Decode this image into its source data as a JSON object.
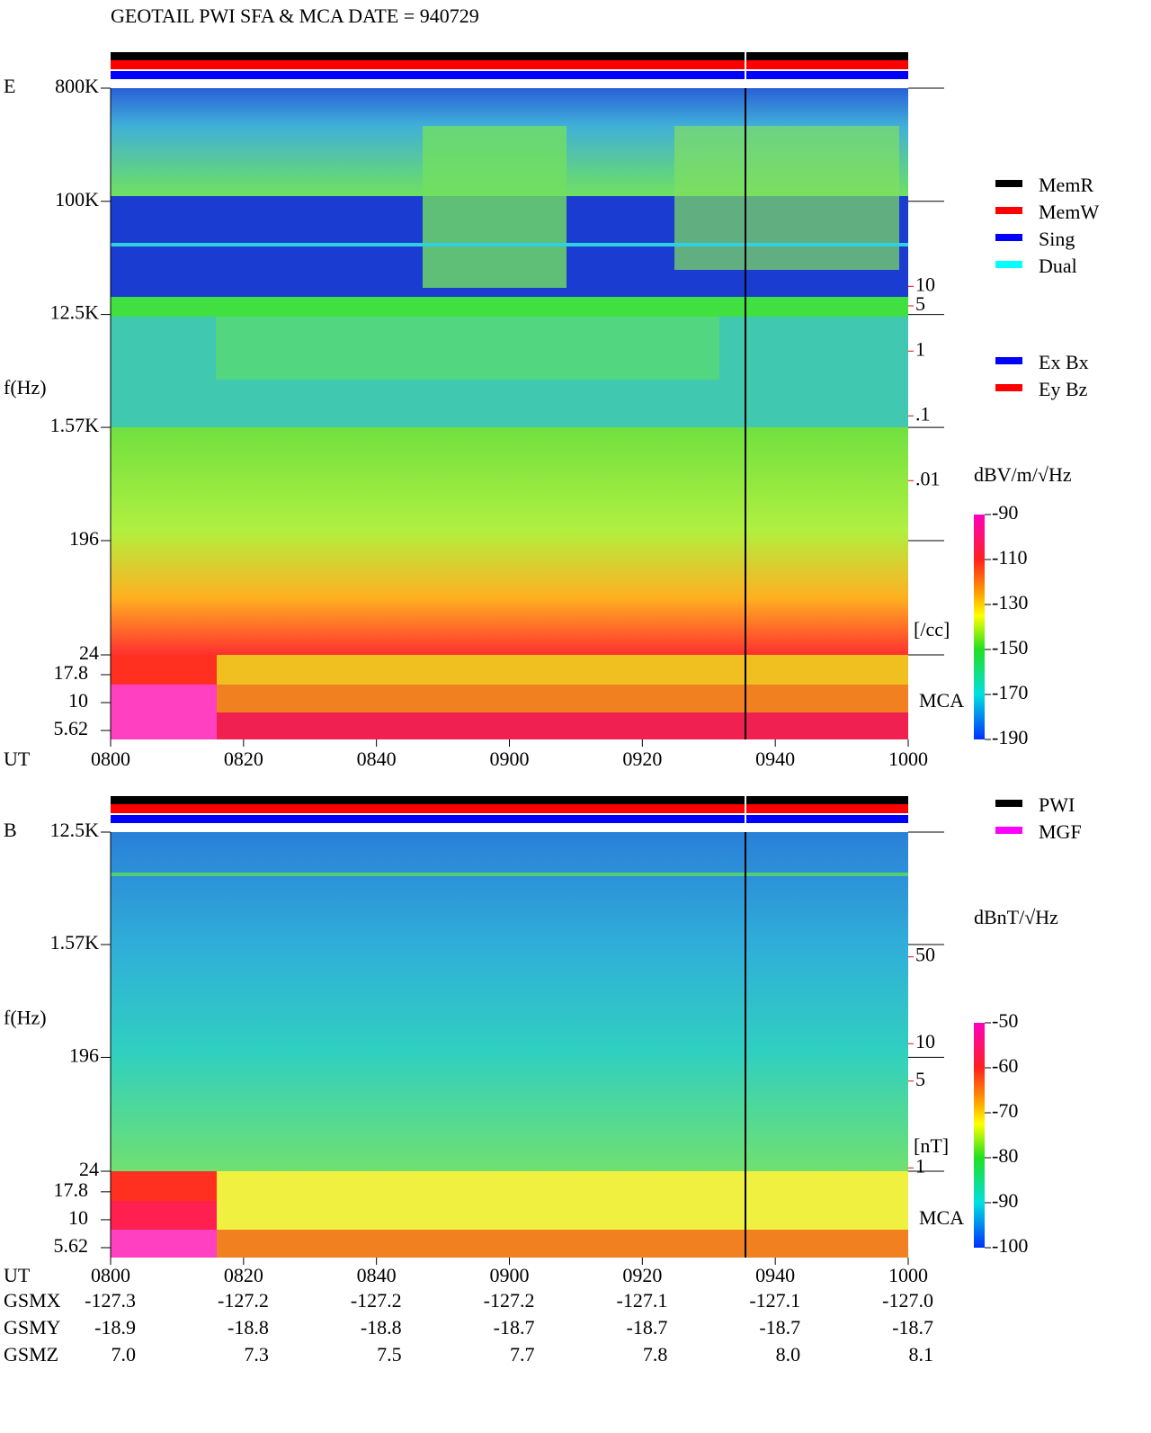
{
  "title": "GEOTAIL  PWI SFA & MCA   DATE = 940729",
  "legends": {
    "modes": [
      {
        "name": "MemR",
        "color": "#000000"
      },
      {
        "name": "MemW",
        "color": "#ff0000"
      },
      {
        "name": "Sing",
        "color": "#0000ff"
      },
      {
        "name": "Dual",
        "color": "#00ffff"
      }
    ],
    "components": [
      {
        "name": "Ex Bx",
        "color": "#0000ff"
      },
      {
        "name": "Ey Bz",
        "color": "#ff0000"
      }
    ],
    "sources": [
      {
        "name": "PWI",
        "color": "#000000"
      },
      {
        "name": "MGF",
        "color": "#ff00ff"
      }
    ]
  },
  "chart_data": [
    {
      "type": "spectrogram",
      "component": "E",
      "ylabel": "f(Hz)",
      "xlabel": "UT",
      "yscale": "log",
      "ylim": [
        24,
        800000
      ],
      "yticks": [
        {
          "value": 800000,
          "label": "800K"
        },
        {
          "value": 100000,
          "label": "100K"
        },
        {
          "value": 12500,
          "label": "12.5K"
        },
        {
          "value": 1570,
          "label": "1.57K"
        },
        196,
        24
      ],
      "mca_label": "MCA",
      "mca_ylim": [
        4.67,
        26.8
      ],
      "mca_ticks": [
        17.8,
        10,
        5.62
      ],
      "xlim": [
        0,
        120
      ],
      "xticks": [
        {
          "value": 0,
          "label": "0800"
        },
        {
          "value": 20,
          "label": "0820"
        },
        {
          "value": 40,
          "label": "0840"
        },
        {
          "value": 60,
          "label": "0900"
        },
        {
          "value": 80,
          "label": "0920"
        },
        {
          "value": 100,
          "label": "0940"
        },
        {
          "value": 120,
          "label": "1000"
        }
      ],
      "y2lim": [
        2.04e-05,
        11480
      ],
      "y2ticks": [
        10,
        5,
        1,
        {
          "value": 0.1,
          "label": ".1"
        },
        {
          "value": 0.01,
          "label": ".01"
        }
      ],
      "y2label": "[/cc]",
      "colorbar": {
        "label": "dBV/m/√Hz",
        "lim": [
          -190,
          -90
        ],
        "ticks": [
          -90,
          -110,
          -130,
          -150,
          -170,
          -190
        ]
      }
    },
    {
      "type": "spectrogram",
      "component": "B",
      "ylabel": "f(Hz)",
      "xlabel": "UT",
      "yscale": "log",
      "ylim": [
        24,
        12500
      ],
      "yticks": [
        {
          "value": 12500,
          "label": "12.5K"
        },
        {
          "value": 1570,
          "label": "1.57K"
        },
        196,
        24
      ],
      "mca_label": "MCA",
      "mca_ylim": [
        4.58,
        27.2
      ],
      "mca_ticks": [
        17.8,
        10,
        5.62
      ],
      "xlim": [
        0,
        120
      ],
      "xticks": [
        {
          "value": 0,
          "label": "0800"
        },
        {
          "value": 20,
          "label": "0820"
        },
        {
          "value": 40,
          "label": "0840"
        },
        {
          "value": 60,
          "label": "0900"
        },
        {
          "value": 80,
          "label": "0920"
        },
        {
          "value": 100,
          "label": "0940"
        },
        {
          "value": 120,
          "label": "1000"
        }
      ],
      "y2lim": [
        0.94,
        505
      ],
      "y2ticks": [
        50,
        10,
        5,
        1
      ],
      "y2label": "[nT]",
      "colorbar": {
        "label": "dBnT/√Hz",
        "lim": [
          -100,
          -50
        ],
        "ticks": [
          -50,
          -60,
          -70,
          -80,
          -90,
          -100
        ]
      }
    }
  ],
  "orbit": {
    "rows": [
      {
        "label": "GSMX",
        "values": [
          "-127.3",
          "-127.2",
          "-127.2",
          "-127.2",
          "-127.1",
          "-127.1",
          "-127.0"
        ]
      },
      {
        "label": "GSMY",
        "values": [
          "-18.9",
          "-18.8",
          "-18.8",
          "-18.7",
          "-18.7",
          "-18.7",
          "-18.7"
        ]
      },
      {
        "label": "GSMZ",
        "values": [
          "7.0",
          "7.3",
          "7.5",
          "7.7",
          "7.8",
          "8.0",
          "8.1"
        ]
      }
    ]
  }
}
